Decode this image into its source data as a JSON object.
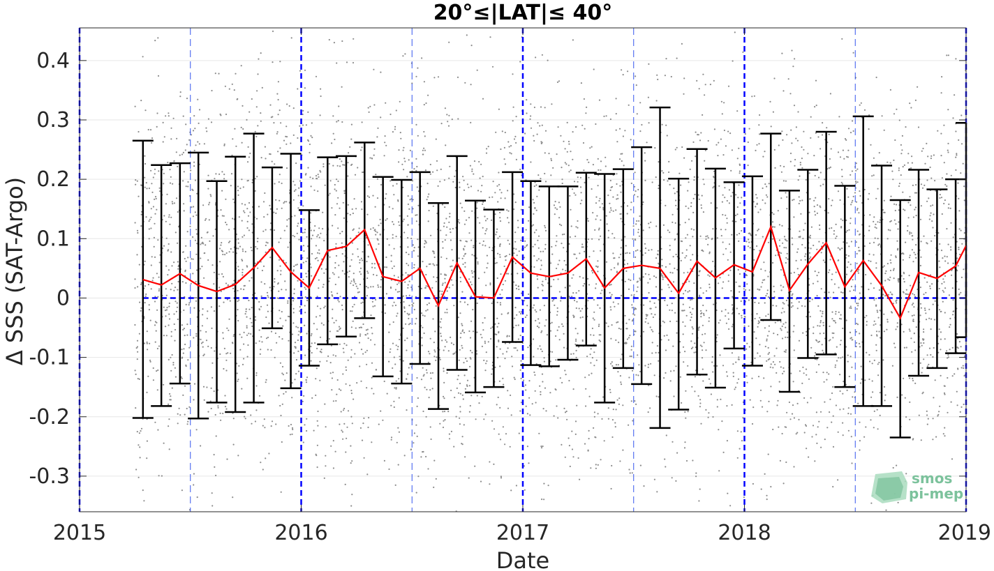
{
  "chart_data": {
    "type": "line",
    "title": "20°≤|LAT|≤ 40°",
    "xlabel": "Date",
    "ylabel": "Δ SSS (SAT-Argo)",
    "xlim": [
      2015.0,
      2019.0
    ],
    "ylim": [
      -0.36,
      0.455
    ],
    "xticks": [
      2015,
      2016,
      2017,
      2018,
      2019
    ],
    "xtick_labels": [
      "2015",
      "2016",
      "2017",
      "2018",
      "2019"
    ],
    "yticks": [
      0.4,
      0.3,
      0.2,
      0.1,
      0,
      -0.1,
      -0.2,
      -0.3
    ],
    "ytick_labels": [
      "0.4",
      "0.3",
      "0.2",
      "0.1",
      "0",
      "-0.1",
      "-0.2",
      "-0.3"
    ],
    "grid": true,
    "year_lines": [
      2015.0,
      2016.0,
      2017.0,
      2018.0,
      2019.0
    ],
    "halfyear_lines": [
      2015.5,
      2016.5,
      2017.5,
      2018.5
    ],
    "zero_line": 0,
    "colors": {
      "mean_line": "#ff0000",
      "errorbar": "#000000",
      "ref_lines": "#0000ff",
      "scatter": "#8c8c8c",
      "grid": "#e6e6e6",
      "logo": "#7cc29c"
    },
    "series": [
      {
        "type": "line_errorbar",
        "x": [
          2015.286,
          2015.369,
          2015.453,
          2015.536,
          2015.619,
          2015.703,
          2015.786,
          2015.869,
          2015.953,
          2016.036,
          2016.119,
          2016.203,
          2016.286,
          2016.369,
          2016.453,
          2016.536,
          2016.619,
          2016.703,
          2016.786,
          2016.869,
          2016.953,
          2017.036,
          2017.119,
          2017.203,
          2017.286,
          2017.369,
          2017.453,
          2017.536,
          2017.619,
          2017.703,
          2017.786,
          2017.869,
          2017.953,
          2018.036,
          2018.119,
          2018.203,
          2018.286,
          2018.369,
          2018.453,
          2018.536,
          2018.619,
          2018.703,
          2018.786,
          2018.869,
          2018.953,
          2019.0
        ],
        "values": [
          0.031,
          0.022,
          0.041,
          0.021,
          0.011,
          0.023,
          0.051,
          0.085,
          0.044,
          0.017,
          0.08,
          0.087,
          0.115,
          0.036,
          0.028,
          0.05,
          -0.013,
          0.059,
          0.002,
          0.0,
          0.069,
          0.042,
          0.036,
          0.042,
          0.066,
          0.017,
          0.05,
          0.055,
          0.05,
          0.008,
          0.062,
          0.034,
          0.056,
          0.044,
          0.12,
          0.013,
          0.057,
          0.093,
          0.019,
          0.063,
          0.021,
          -0.034,
          0.043,
          0.033,
          0.054,
          0.088
        ],
        "upper": [
          0.265,
          0.224,
          0.227,
          0.245,
          0.197,
          0.238,
          0.277,
          0.22,
          0.243,
          0.148,
          0.237,
          0.239,
          0.262,
          0.204,
          0.199,
          0.212,
          0.16,
          0.239,
          0.164,
          0.149,
          0.212,
          0.197,
          0.188,
          0.188,
          0.211,
          0.209,
          0.217,
          0.254,
          0.321,
          0.201,
          0.251,
          0.218,
          0.195,
          0.205,
          0.277,
          0.181,
          0.216,
          0.28,
          0.189,
          0.306,
          0.223,
          0.165,
          0.216,
          0.183,
          0.2,
          0.295
        ],
        "lower": [
          -0.202,
          -0.182,
          -0.144,
          -0.203,
          -0.176,
          -0.192,
          -0.176,
          -0.051,
          -0.152,
          -0.114,
          -0.078,
          -0.065,
          -0.034,
          -0.132,
          -0.144,
          -0.111,
          -0.187,
          -0.121,
          -0.159,
          -0.15,
          -0.074,
          -0.113,
          -0.115,
          -0.104,
          -0.08,
          -0.176,
          -0.118,
          -0.145,
          -0.219,
          -0.188,
          -0.129,
          -0.151,
          -0.085,
          -0.114,
          -0.037,
          -0.158,
          -0.101,
          -0.095,
          -0.15,
          -0.182,
          -0.182,
          -0.235,
          -0.131,
          -0.118,
          -0.093,
          -0.066
        ]
      },
      {
        "type": "scatter",
        "description_range_x": [
          2015.25,
          2019.0
        ],
        "description_range_y": [
          -0.36,
          0.455
        ]
      }
    ]
  },
  "logo": {
    "line1": "smos",
    "line2": "pi-mep"
  }
}
